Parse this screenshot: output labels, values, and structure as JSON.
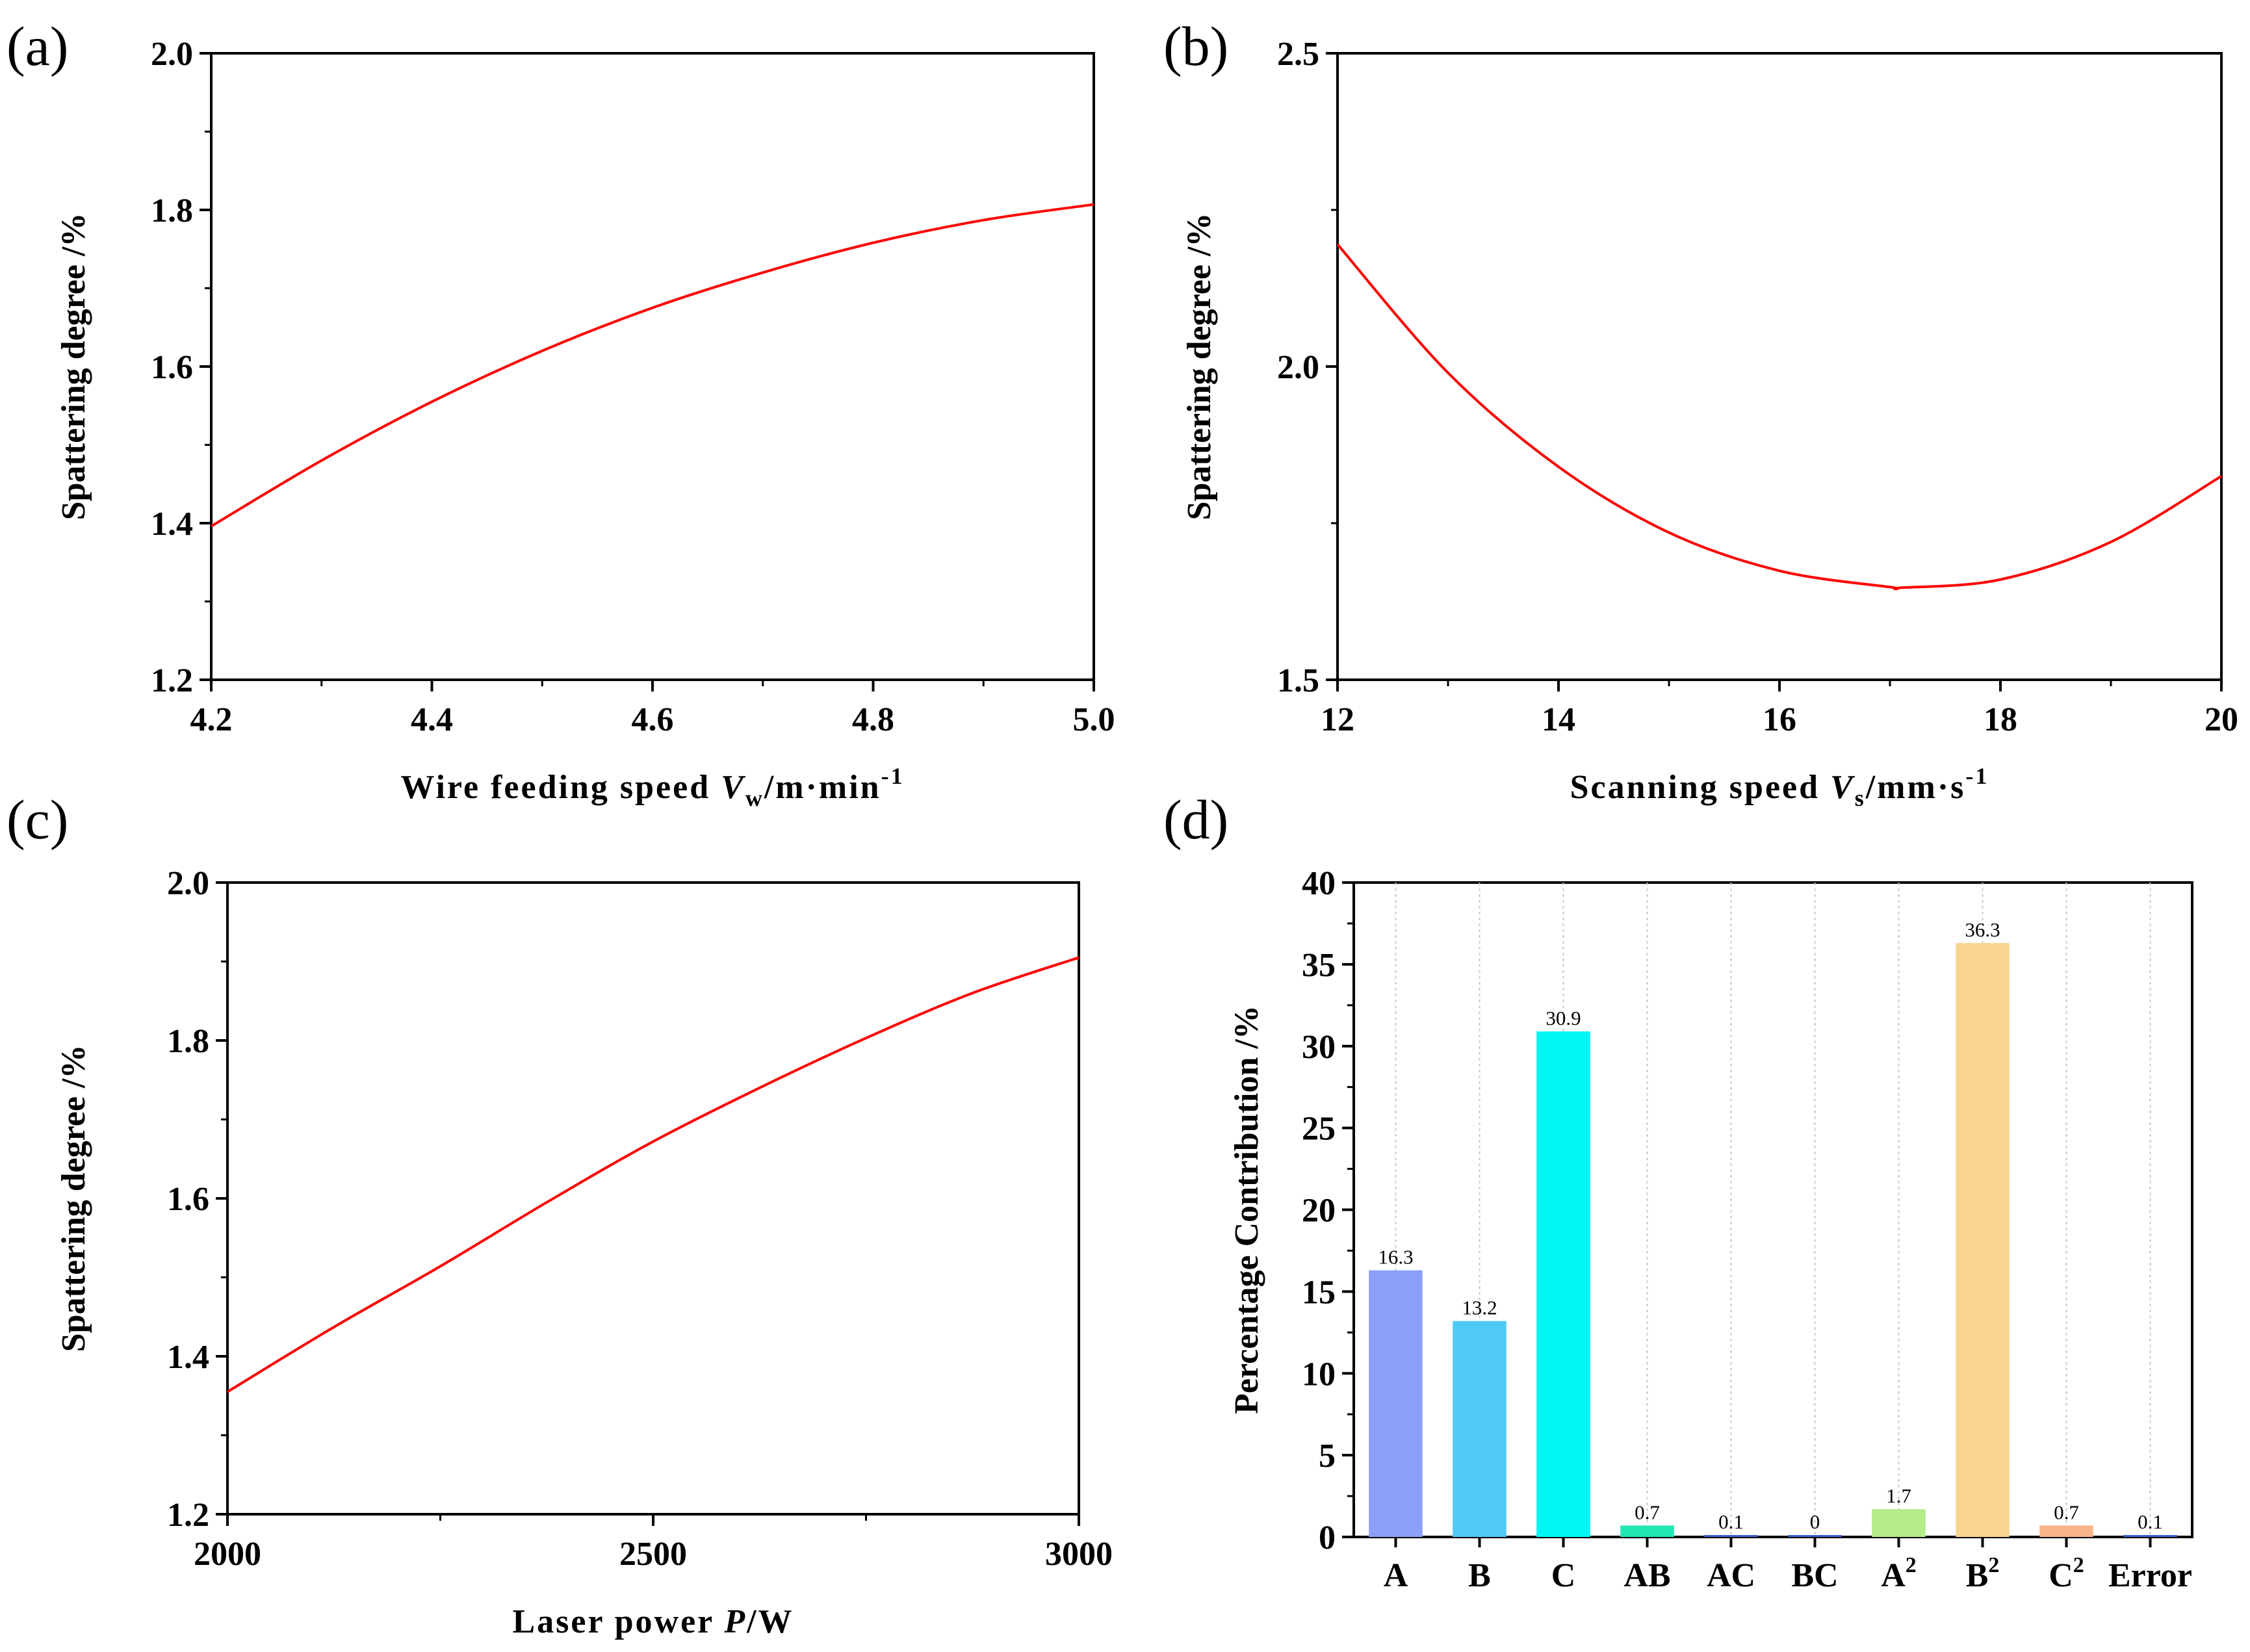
{
  "chart_data": [
    {
      "panel": "(a)",
      "type": "line",
      "xlabel": {
        "main": "Wire feeding speed ",
        "var": "V",
        "sub": "w",
        "unit": "/m·min",
        "sup": "-1"
      },
      "ylabel": "Spattering degree  /%",
      "xlim": [
        4.2,
        5.0
      ],
      "ylim": [
        1.2,
        2.0
      ],
      "xticks": [
        "4.2",
        "4.4",
        "4.6",
        "4.8",
        "5.0"
      ],
      "yticks": [
        "1.2",
        "1.4",
        "1.6",
        "1.8",
        "2.0"
      ],
      "line_color": "#ff0000",
      "series": [
        {
          "name": "Spattering degree",
          "x": [
            4.2,
            4.3,
            4.4,
            4.5,
            4.6,
            4.7,
            4.8,
            4.9,
            5.0
          ],
          "y": [
            1.396,
            1.48,
            1.555,
            1.62,
            1.675,
            1.72,
            1.758,
            1.787,
            1.807
          ]
        }
      ]
    },
    {
      "panel": "(b)",
      "type": "line",
      "xlabel": {
        "main": "Scanning speed ",
        "var": "V",
        "sub": "s",
        "unit": "/mm·s",
        "sup": "-1"
      },
      "ylabel": "Spattering degree  /%",
      "xlim": [
        12,
        20
      ],
      "ylim": [
        1.5,
        2.5
      ],
      "xticks": [
        "12",
        "14",
        "16",
        "18",
        "20"
      ],
      "yticks": [
        "1.5",
        "2.0",
        "2.5"
      ],
      "line_color": "#ff0000",
      "series": [
        {
          "name": "Spattering degree",
          "x": [
            12,
            13,
            14,
            15,
            16,
            17,
            17.1,
            18,
            19,
            20
          ],
          "y": [
            2.195,
            1.99,
            1.84,
            1.735,
            1.674,
            1.648,
            1.647,
            1.66,
            1.72,
            1.825
          ]
        }
      ]
    },
    {
      "panel": "(c)",
      "type": "line",
      "xlabel": {
        "main": "Laser power ",
        "var": "P",
        "sub": "",
        "unit": "/W",
        "sup": ""
      },
      "ylabel": "Spattering degree  /%",
      "xlim": [
        2000,
        3000
      ],
      "ylim": [
        1.2,
        2.0
      ],
      "xticks": [
        "2000",
        "2500",
        "3000"
      ],
      "yticks": [
        "1.2",
        "1.4",
        "1.6",
        "1.8",
        "2.0"
      ],
      "line_color": "#ff0000",
      "series": [
        {
          "name": "Spattering degree",
          "x": [
            2000,
            2125,
            2250,
            2375,
            2500,
            2625,
            2750,
            2875,
            3000
          ],
          "y": [
            1.355,
            1.437,
            1.514,
            1.595,
            1.672,
            1.74,
            1.803,
            1.86,
            1.905
          ]
        }
      ]
    },
    {
      "panel": "(d)",
      "type": "bar",
      "xlabel": "",
      "ylabel": "Percentage Contribution /%",
      "ylim": [
        0,
        40
      ],
      "yticks": [
        "0",
        "5",
        "10",
        "15",
        "20",
        "25",
        "30",
        "35",
        "40"
      ],
      "categories": [
        {
          "base": "A",
          "sup": ""
        },
        {
          "base": "B",
          "sup": ""
        },
        {
          "base": "C",
          "sup": ""
        },
        {
          "base": "AB",
          "sup": ""
        },
        {
          "base": "AC",
          "sup": ""
        },
        {
          "base": "BC",
          "sup": ""
        },
        {
          "base": "A",
          "sup": "2"
        },
        {
          "base": "B",
          "sup": "2"
        },
        {
          "base": "C",
          "sup": "2"
        },
        {
          "base": "Error",
          "sup": ""
        }
      ],
      "values": [
        16.3,
        13.2,
        30.9,
        0.7,
        0.1,
        0,
        1.7,
        36.3,
        0.7,
        0.1
      ],
      "value_labels": [
        "16.3",
        "13.2",
        "30.9",
        "0.7",
        "0.1",
        "0",
        "1.7",
        "36.3",
        "0.7",
        "0.1"
      ],
      "colors": [
        "#8da0f8",
        "#4fc9f5",
        "#00f5f5",
        "#21e6b4",
        "#3a5fcd",
        "#3a5fcd",
        "#b4ec8a",
        "#f8d490",
        "#f8b48a",
        "#3a5fcd"
      ]
    }
  ]
}
